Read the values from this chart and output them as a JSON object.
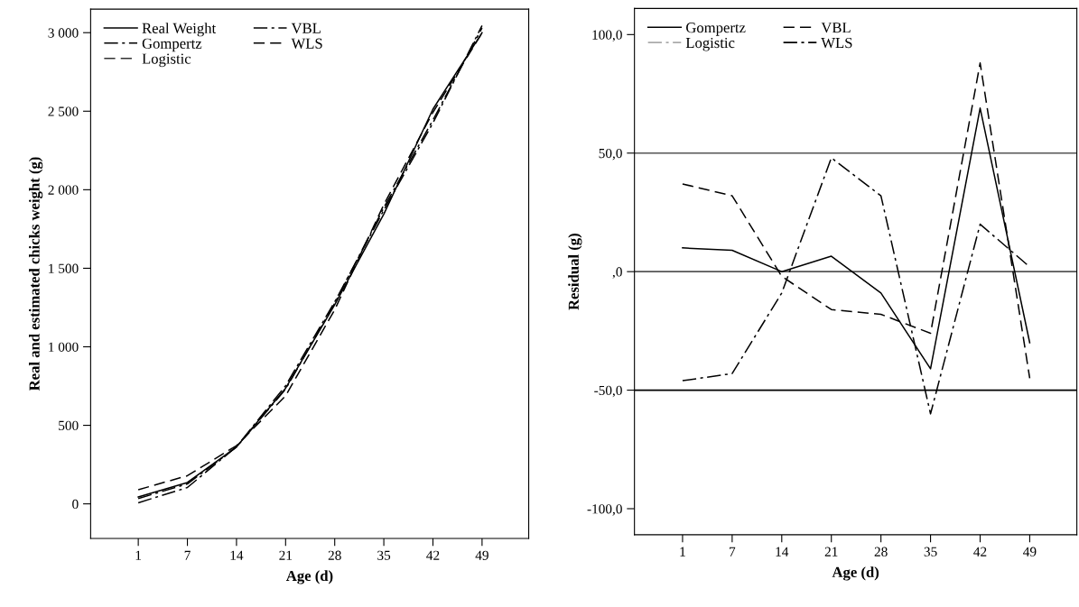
{
  "chart_data": [
    {
      "type": "line",
      "xlabel": "Age (d)",
      "ylabel": "Real and estimated chicks weight (g)",
      "categories": [
        "1",
        "7",
        "14",
        "21",
        "28",
        "35",
        "42",
        "49"
      ],
      "series": [
        {
          "name": "Real Weight",
          "color": "#000000",
          "line_style": "solid",
          "values": [
            44,
            136,
            362,
            736,
            1268,
            1845,
            2513,
            3000
          ]
        },
        {
          "name": "Gompertz",
          "color": "#000000",
          "line_style": "dashdot",
          "values": [
            34,
            127,
            362,
            730,
            1277,
            1886,
            2444,
            3030
          ]
        },
        {
          "name": "Logistic",
          "color": "#333333",
          "line_style": "dashed",
          "values": [
            null,
            null,
            null,
            null,
            null,
            null,
            null,
            null
          ]
        },
        {
          "name": "VBL",
          "color": "#000000",
          "line_style": "dashdot",
          "values": [
            7,
            104,
            364,
            752,
            1286,
            1871,
            2425,
            3045
          ]
        },
        {
          "name": "WLS",
          "color": "#000000",
          "line_style": "dashed",
          "values": [
            90,
            179,
            371,
            688,
            1236,
            1905,
            2493,
            2998
          ]
        }
      ],
      "ylim": [
        -220,
        3150
      ],
      "yticks": [
        0,
        500,
        {
          "value": 1000,
          "label": "1 000"
        },
        {
          "value": 1500,
          "label": "1 500"
        },
        {
          "value": 2000,
          "label": "2 000"
        },
        {
          "value": 2500,
          "label": "2 500"
        },
        {
          "value": 3000,
          "label": "3 000"
        }
      ],
      "legend": "top left",
      "grid": false
    },
    {
      "type": "line",
      "xlabel": "Age (d)",
      "ylabel": "Residual (g)",
      "categories": [
        "1",
        "7",
        "14",
        "21",
        "28",
        "35",
        "42",
        "49"
      ],
      "series": [
        {
          "name": "Gompertz",
          "color": "#000000",
          "line_style": "solid",
          "values": [
            10,
            9,
            0,
            6.5,
            -9,
            -41,
            69,
            -30
          ]
        },
        {
          "name": "Logistic",
          "color": "#aaaaaa",
          "line_style": "dashdot",
          "values": [
            null,
            null,
            null,
            null,
            null,
            null,
            null,
            null
          ]
        },
        {
          "name": "VBL",
          "color": "#000000",
          "line_style": "dashed",
          "values": [
            37,
            32,
            -2,
            -16,
            -18,
            -26,
            88,
            -45
          ]
        },
        {
          "name": "WLS",
          "color": "#000000",
          "line_style": "dashdot",
          "values": [
            -46,
            -43,
            -9,
            48,
            32,
            -60,
            20,
            2
          ]
        }
      ],
      "ylim": [
        -111,
        111
      ],
      "yticks": [
        {
          "value": -100,
          "label": "-100,0"
        },
        {
          "value": -50,
          "label": "-50,0"
        },
        {
          "value": 0,
          "label": ",0"
        },
        {
          "value": 50,
          "label": "50,0"
        },
        {
          "value": 100,
          "label": "100,0"
        }
      ],
      "ref_lines": [
        {
          "axis": "y",
          "value": 50,
          "color": "#555555"
        },
        {
          "axis": "y",
          "value": 0,
          "color": "#555555"
        },
        {
          "axis": "y",
          "value": -50,
          "color": "#000000"
        }
      ],
      "legend": "top left",
      "grid": false
    }
  ]
}
